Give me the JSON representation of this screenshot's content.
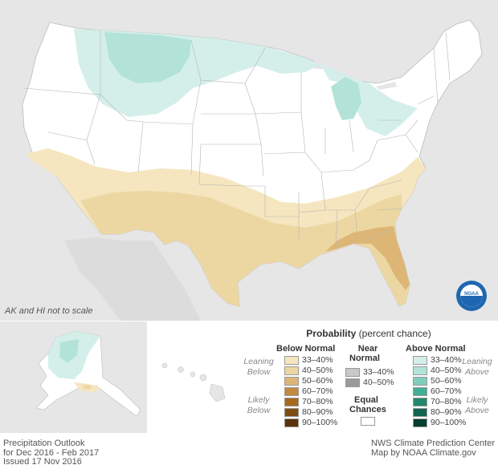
{
  "map": {
    "not_to_scale_note": "AK and HI not to scale",
    "logo_text": "NOAA"
  },
  "legend": {
    "title_bold": "Probability",
    "title_rest": " (percent chance)",
    "below_header": "Below Normal",
    "near_header_1": "Near",
    "near_header_2": "Normal",
    "above_header": "Above Normal",
    "leaning_below_1": "Leaning",
    "leaning_below_2": "Below",
    "likely_below_1": "Likely",
    "likely_below_2": "Below",
    "leaning_above_1": "Leaning",
    "leaning_above_2": "Above",
    "likely_above_1": "Likely",
    "likely_above_2": "Above",
    "equal_1": "Equal",
    "equal_2": "Chances",
    "below_rows": [
      {
        "label": "33–40%",
        "color": "#f5e6bf"
      },
      {
        "label": "40–50%",
        "color": "#ecd7a3"
      },
      {
        "label": "50–60%",
        "color": "#ddb676"
      },
      {
        "label": "60–70%",
        "color": "#c28a3e"
      },
      {
        "label": "70–80%",
        "color": "#a5691f"
      },
      {
        "label": "80–90%",
        "color": "#7f4c12"
      },
      {
        "label": "90–100%",
        "color": "#5a330a"
      }
    ],
    "near_rows": [
      {
        "label": "33–40%",
        "color": "#c8c8c8"
      },
      {
        "label": "40–50%",
        "color": "#9a9a9a"
      }
    ],
    "above_rows": [
      {
        "label": "33–40%",
        "color": "#d4efe9"
      },
      {
        "label": "40–50%",
        "color": "#b3e3d8"
      },
      {
        "label": "50–60%",
        "color": "#7fcdbb"
      },
      {
        "label": "60–70%",
        "color": "#41ae95"
      },
      {
        "label": "70–80%",
        "color": "#23876d"
      },
      {
        "label": "80–90%",
        "color": "#11644f"
      },
      {
        "label": "90–100%",
        "color": "#053d30"
      }
    ]
  },
  "footer": {
    "left_1": "Precipitation Outlook",
    "left_2": "for Dec 2016 - Feb 2017",
    "left_3": "Issued 17 Nov 2016",
    "right_1": "NWS Climate Prediction Center",
    "right_2": "Map by NOAA Climate.gov"
  }
}
